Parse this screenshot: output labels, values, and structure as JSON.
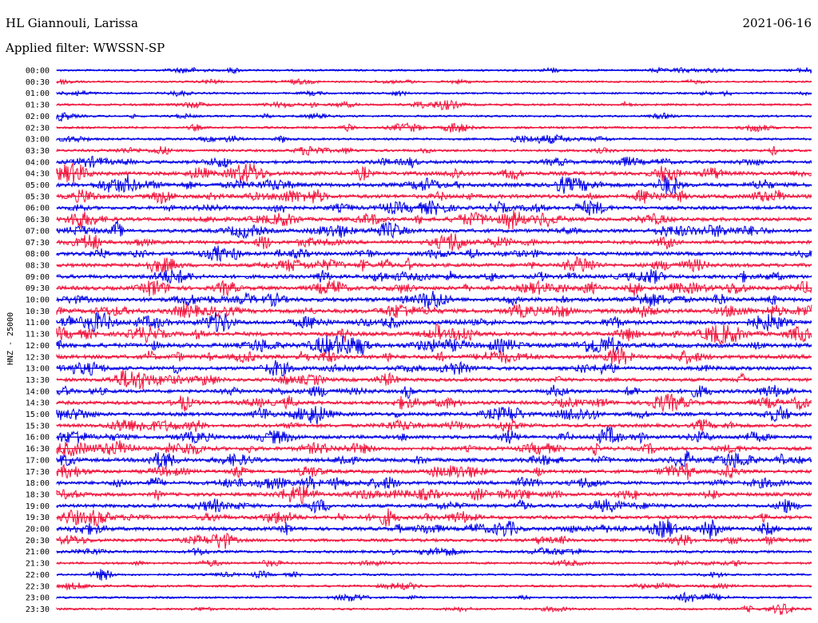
{
  "header": {
    "station": "HL Giannouli, Larissa",
    "date": "2021-06-16",
    "filter": "Applied filter: WWSSN-SP"
  },
  "chart_data": {
    "type": "line",
    "ylabel": "HNZ - 25000",
    "trace_labels": [
      "00:00",
      "00:30",
      "01:00",
      "01:30",
      "02:00",
      "02:30",
      "03:00",
      "03:30",
      "04:00",
      "04:30",
      "05:00",
      "05:30",
      "06:00",
      "06:30",
      "07:00",
      "07:30",
      "08:00",
      "08:30",
      "09:00",
      "09:30",
      "10:00",
      "10:30",
      "11:00",
      "11:30",
      "12:00",
      "12:30",
      "13:00",
      "13:30",
      "14:00",
      "14:30",
      "15:00",
      "15:30",
      "16:00",
      "16:30",
      "17:00",
      "17:30",
      "18:00",
      "18:30",
      "19:00",
      "19:30",
      "20:00",
      "20:30",
      "21:00",
      "21:30",
      "22:00",
      "22:30",
      "23:00",
      "23:30"
    ],
    "series_colors": [
      "#0000e6",
      "#f0143c"
    ],
    "activity_level": [
      0.3,
      0.25,
      0.3,
      0.35,
      0.3,
      0.35,
      0.35,
      0.45,
      0.6,
      0.8,
      0.85,
      0.8,
      0.7,
      0.75,
      0.75,
      0.75,
      0.75,
      0.75,
      0.8,
      0.85,
      0.9,
      0.9,
      0.85,
      0.9,
      0.95,
      0.85,
      0.75,
      0.7,
      0.7,
      0.75,
      0.75,
      0.7,
      0.75,
      0.75,
      0.75,
      0.7,
      0.75,
      0.75,
      0.7,
      0.7,
      0.75,
      0.6,
      0.45,
      0.35,
      0.3,
      0.35,
      0.3,
      0.3
    ]
  }
}
